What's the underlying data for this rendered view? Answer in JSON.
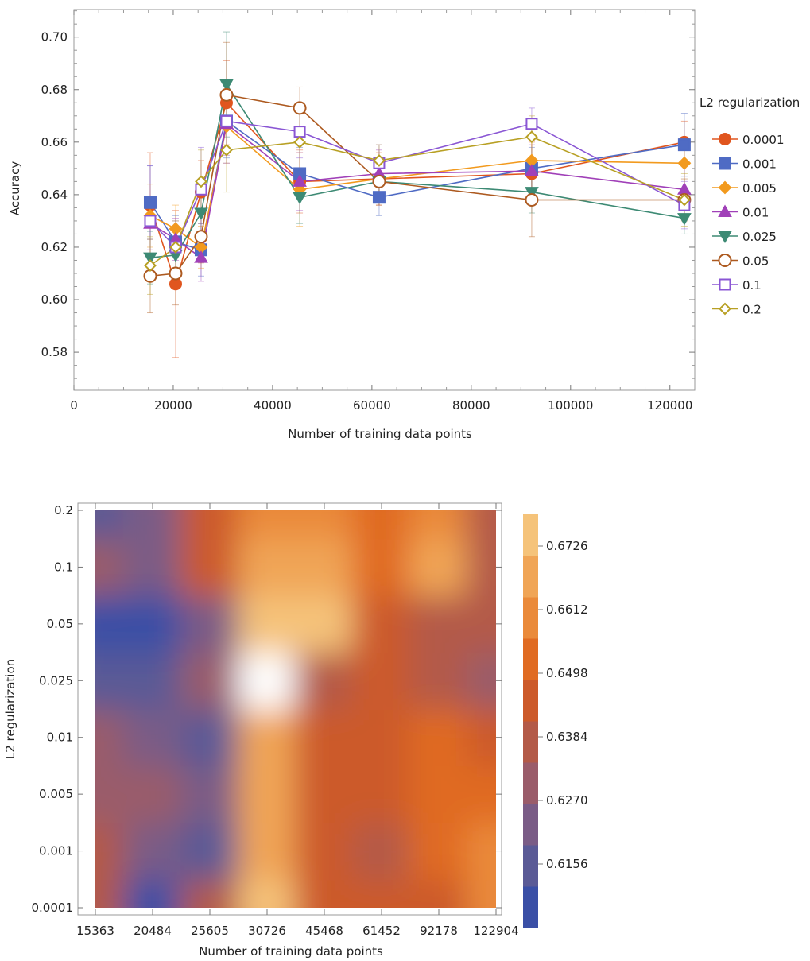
{
  "chart_data": [
    {
      "type": "line",
      "title": "",
      "xlabel": "Number of training data points",
      "ylabel": "Accuracy",
      "xlim": [
        0,
        125000
      ],
      "ylim": [
        0.5655,
        0.7105
      ],
      "x_ticks": [
        0,
        20000,
        40000,
        60000,
        80000,
        100000,
        120000
      ],
      "x_tick_labels": [
        "0",
        "20000",
        "40000",
        "60000",
        "80000",
        "100000",
        "120000"
      ],
      "y_ticks": [
        0.58,
        0.6,
        0.62,
        0.64,
        0.66,
        0.68,
        0.7
      ],
      "y_tick_labels": [
        "0.58",
        "0.60",
        "0.62",
        "0.64",
        "0.66",
        "0.68",
        "0.70"
      ],
      "x": [
        15363,
        20484,
        25605,
        30726,
        45468,
        61452,
        92178,
        122904
      ],
      "legend_title": "L2 regularization",
      "legend_position": "right",
      "error_bars": true,
      "series": [
        {
          "name": "0.0001",
          "color": "#e0551e",
          "marker": "circle",
          "filled": true,
          "values": [
            0.636,
            0.606,
            0.641,
            0.675,
            0.645,
            0.646,
            0.648,
            0.66
          ],
          "errors": [
            0.02,
            0.028,
            0.012,
            0.016,
            0.012,
            0.01,
            0.012,
            0.008
          ]
        },
        {
          "name": "0.001",
          "color": "#4f6bc4",
          "marker": "square",
          "filled": true,
          "values": [
            0.637,
            0.622,
            0.619,
            0.668,
            0.648,
            0.639,
            0.65,
            0.659
          ],
          "errors": [
            0.014,
            0.01,
            0.01,
            0.014,
            0.01,
            0.007,
            0.008,
            0.012
          ]
        },
        {
          "name": "0.005",
          "color": "#f29a1e",
          "marker": "diamond",
          "filled": true,
          "values": [
            0.632,
            0.627,
            0.62,
            0.666,
            0.642,
            0.646,
            0.653,
            0.652
          ],
          "errors": [
            0.012,
            0.009,
            0.008,
            0.014,
            0.014,
            0.008,
            0.012,
            0.01
          ]
        },
        {
          "name": "0.01",
          "color": "#a040b8",
          "marker": "triangle-up",
          "filled": true,
          "values": [
            0.629,
            0.623,
            0.616,
            0.667,
            0.645,
            0.648,
            0.649,
            0.642
          ],
          "errors": [
            0.01,
            0.008,
            0.009,
            0.012,
            0.011,
            0.009,
            0.01,
            0.01
          ]
        },
        {
          "name": "0.025",
          "color": "#3d8a74",
          "marker": "triangle-down",
          "filled": true,
          "values": [
            0.616,
            0.617,
            0.633,
            0.682,
            0.639,
            0.645,
            0.641,
            0.631
          ],
          "errors": [
            0.01,
            0.009,
            0.01,
            0.02,
            0.01,
            0.008,
            0.008,
            0.006
          ]
        },
        {
          "name": "0.05",
          "color": "#ad5a20",
          "marker": "circle",
          "filled": false,
          "values": [
            0.609,
            0.61,
            0.624,
            0.678,
            0.673,
            0.645,
            0.638,
            0.638
          ],
          "errors": [
            0.014,
            0.012,
            0.01,
            0.02,
            0.008,
            0.009,
            0.014,
            0.008
          ]
        },
        {
          "name": "0.1",
          "color": "#8a56d4",
          "marker": "square",
          "filled": false,
          "values": [
            0.63,
            0.62,
            0.642,
            0.668,
            0.664,
            0.652,
            0.667,
            0.636
          ],
          "errors": [
            0.021,
            0.01,
            0.016,
            0.016,
            0.01,
            0.007,
            0.006,
            0.009
          ]
        },
        {
          "name": "0.2",
          "color": "#b8a024",
          "marker": "diamond",
          "filled": false,
          "values": [
            0.613,
            0.62,
            0.645,
            0.657,
            0.66,
            0.653,
            0.662,
            0.638
          ],
          "errors": [
            0.011,
            0.01,
            0.012,
            0.016,
            0.014,
            0.006,
            0.008,
            0.01
          ]
        }
      ]
    },
    {
      "type": "heatmap",
      "subtype": "contour",
      "title": "",
      "xlabel": "Number of training data points",
      "ylabel": "L2 regularization",
      "x": [
        "15363",
        "20484",
        "25605",
        "30726",
        "45468",
        "61452",
        "92178",
        "122904"
      ],
      "y": [
        "0.0001",
        "0.001",
        "0.005",
        "0.01",
        "0.025",
        "0.05",
        "0.1",
        "0.2"
      ],
      "z": [
        [
          0.636,
          0.606,
          0.641,
          0.675,
          0.645,
          0.646,
          0.648,
          0.66
        ],
        [
          0.637,
          0.622,
          0.619,
          0.668,
          0.648,
          0.639,
          0.65,
          0.659
        ],
        [
          0.632,
          0.627,
          0.62,
          0.666,
          0.642,
          0.646,
          0.653,
          0.652
        ],
        [
          0.629,
          0.623,
          0.616,
          0.667,
          0.645,
          0.648,
          0.649,
          0.642
        ],
        [
          0.616,
          0.617,
          0.633,
          0.682,
          0.639,
          0.645,
          0.641,
          0.631
        ],
        [
          0.609,
          0.61,
          0.624,
          0.678,
          0.673,
          0.645,
          0.638,
          0.638
        ],
        [
          0.63,
          0.62,
          0.642,
          0.668,
          0.664,
          0.652,
          0.667,
          0.636
        ],
        [
          0.613,
          0.62,
          0.645,
          0.657,
          0.66,
          0.653,
          0.662,
          0.638
        ]
      ],
      "colorbar_range": [
        0.6042,
        0.6783
      ],
      "colorbar_ticks": [
        0.6156,
        0.627,
        0.6384,
        0.6498,
        0.6612,
        0.6726
      ],
      "colorbar_tick_labels": [
        "0.6156",
        "0.6270",
        "0.6384",
        "0.6498",
        "0.6612",
        "0.6726"
      ],
      "colorbar_colors": [
        "#3a4fa6",
        "#5a5a96",
        "#7a5c86",
        "#9a5c6a",
        "#b35a48",
        "#cc5a2a",
        "#e06b22",
        "#ea8a3a",
        "#f0a556",
        "#f5c37a"
      ],
      "overflow_color": "#ffffff"
    }
  ]
}
